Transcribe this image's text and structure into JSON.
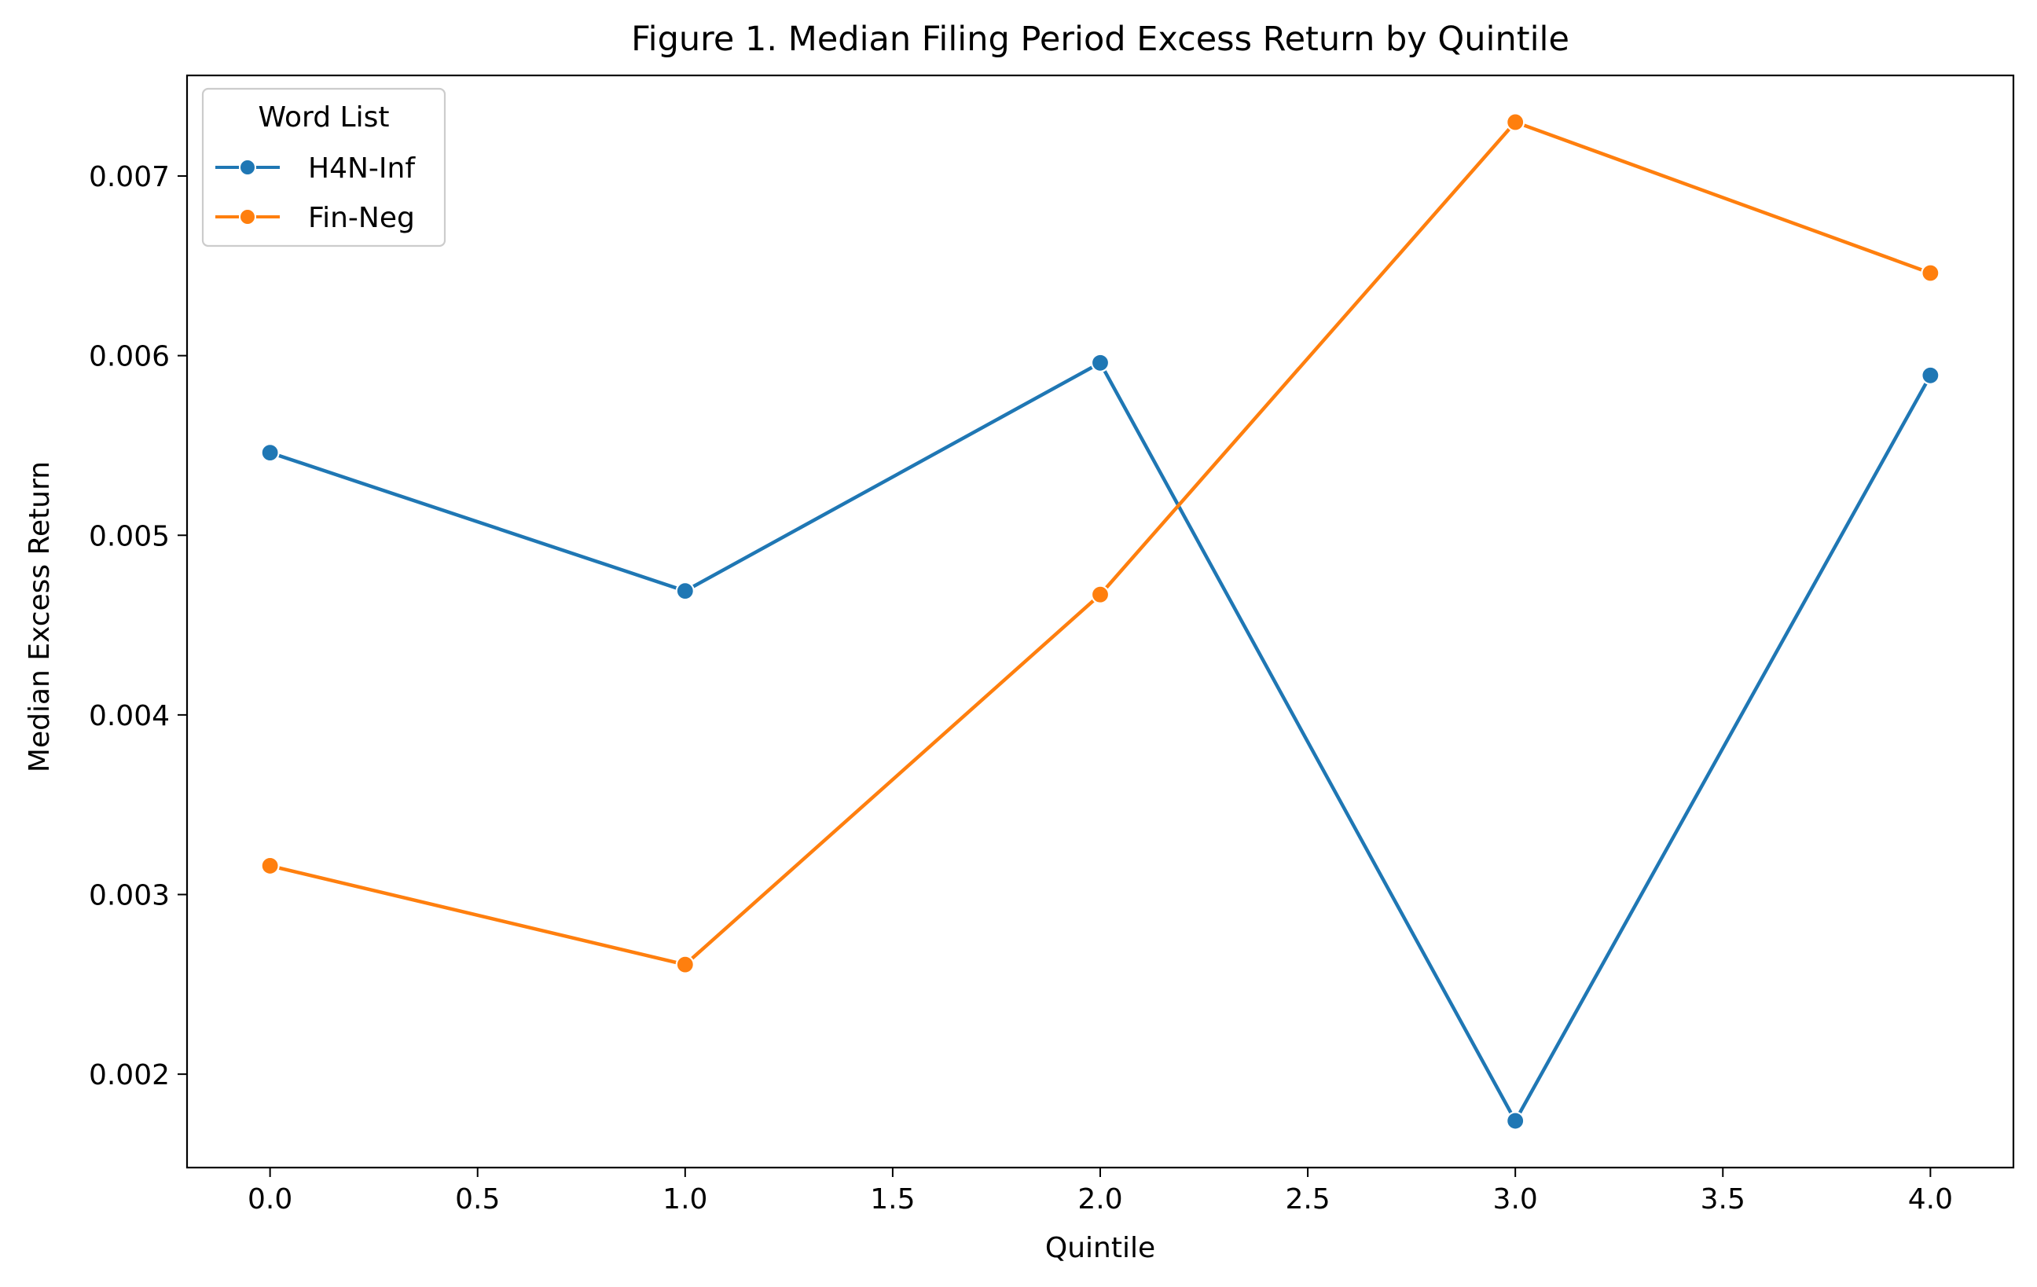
{
  "chart_data": {
    "type": "line",
    "title": "Figure 1. Median Filing Period Excess Return by Quintile",
    "xlabel": "Quintile",
    "ylabel": "Median Excess Return",
    "x": [
      0,
      1,
      2,
      3,
      4
    ],
    "xticks": [
      "0.0",
      "0.5",
      "1.0",
      "1.5",
      "2.0",
      "2.5",
      "3.0",
      "3.5",
      "4.0"
    ],
    "yticks": [
      "0.002",
      "0.003",
      "0.004",
      "0.005",
      "0.006",
      "0.007"
    ],
    "xlim": [
      -0.2,
      4.2
    ],
    "ylim": [
      0.00148,
      0.00756
    ],
    "grid": false,
    "legend": {
      "title": "Word List",
      "placement": "top-left"
    },
    "series": [
      {
        "name": "H4N-Inf",
        "color": "#1f77b4",
        "marker": "circle",
        "values": [
          0.00546,
          0.00469,
          0.00596,
          0.00174,
          0.00589
        ]
      },
      {
        "name": "Fin-Neg",
        "color": "#ff7f0e",
        "marker": "circle",
        "values": [
          0.00316,
          0.00261,
          0.00467,
          0.0073,
          0.00646
        ]
      }
    ]
  }
}
